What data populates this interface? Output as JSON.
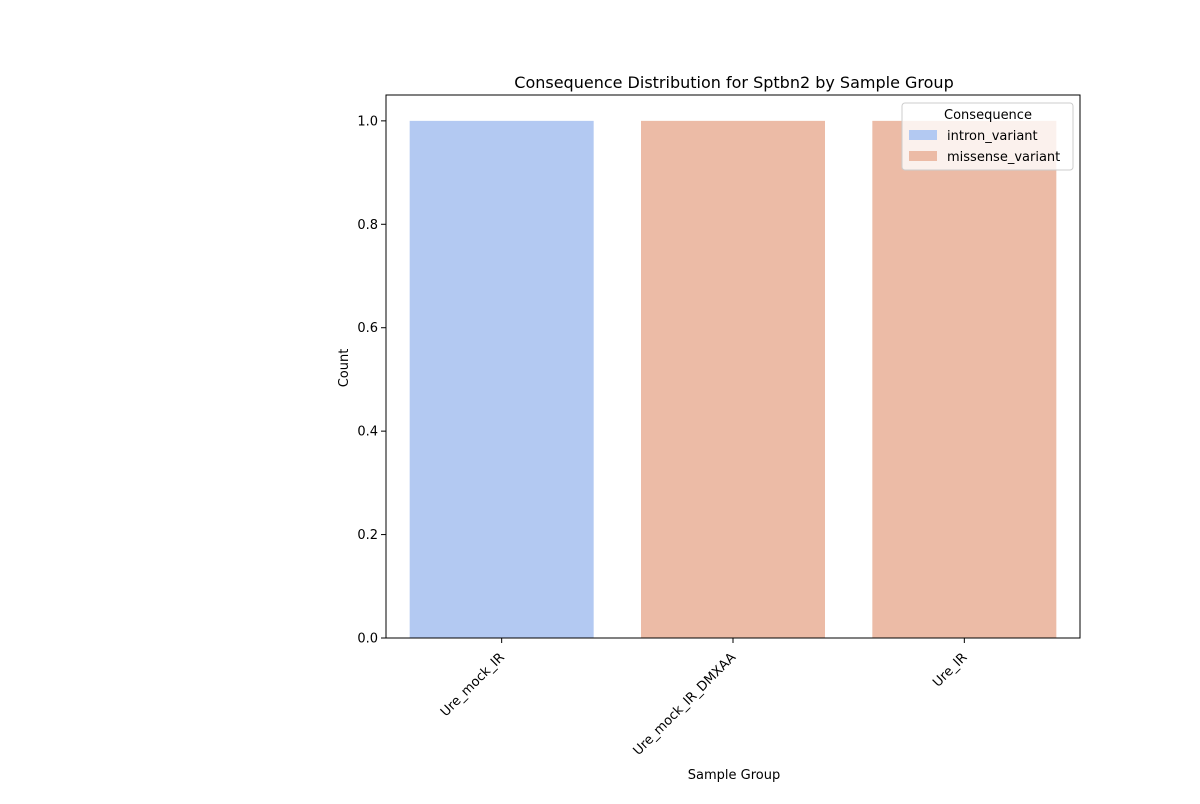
{
  "chart_data": {
    "type": "bar",
    "title": "Consequence Distribution for Sptbn2 by Sample Group",
    "xlabel": "Sample Group",
    "ylabel": "Count",
    "categories": [
      "Ure_mock_IR",
      "Ure_mock_IR_DMXAA",
      "Ure_IR"
    ],
    "series": [
      {
        "name": "intron_variant",
        "color": "#b3c9f2",
        "values": [
          1.0,
          0,
          0
        ]
      },
      {
        "name": "missense_variant",
        "color": "#ecbba6",
        "values": [
          0,
          1.0,
          1.0
        ]
      }
    ],
    "ylim": [
      0,
      1.05
    ],
    "yticks": [
      "0.0",
      "0.2",
      "0.4",
      "0.6",
      "0.8",
      "1.0"
    ],
    "legend": {
      "title": "Consequence",
      "placement": "top-right"
    },
    "grid": false
  }
}
